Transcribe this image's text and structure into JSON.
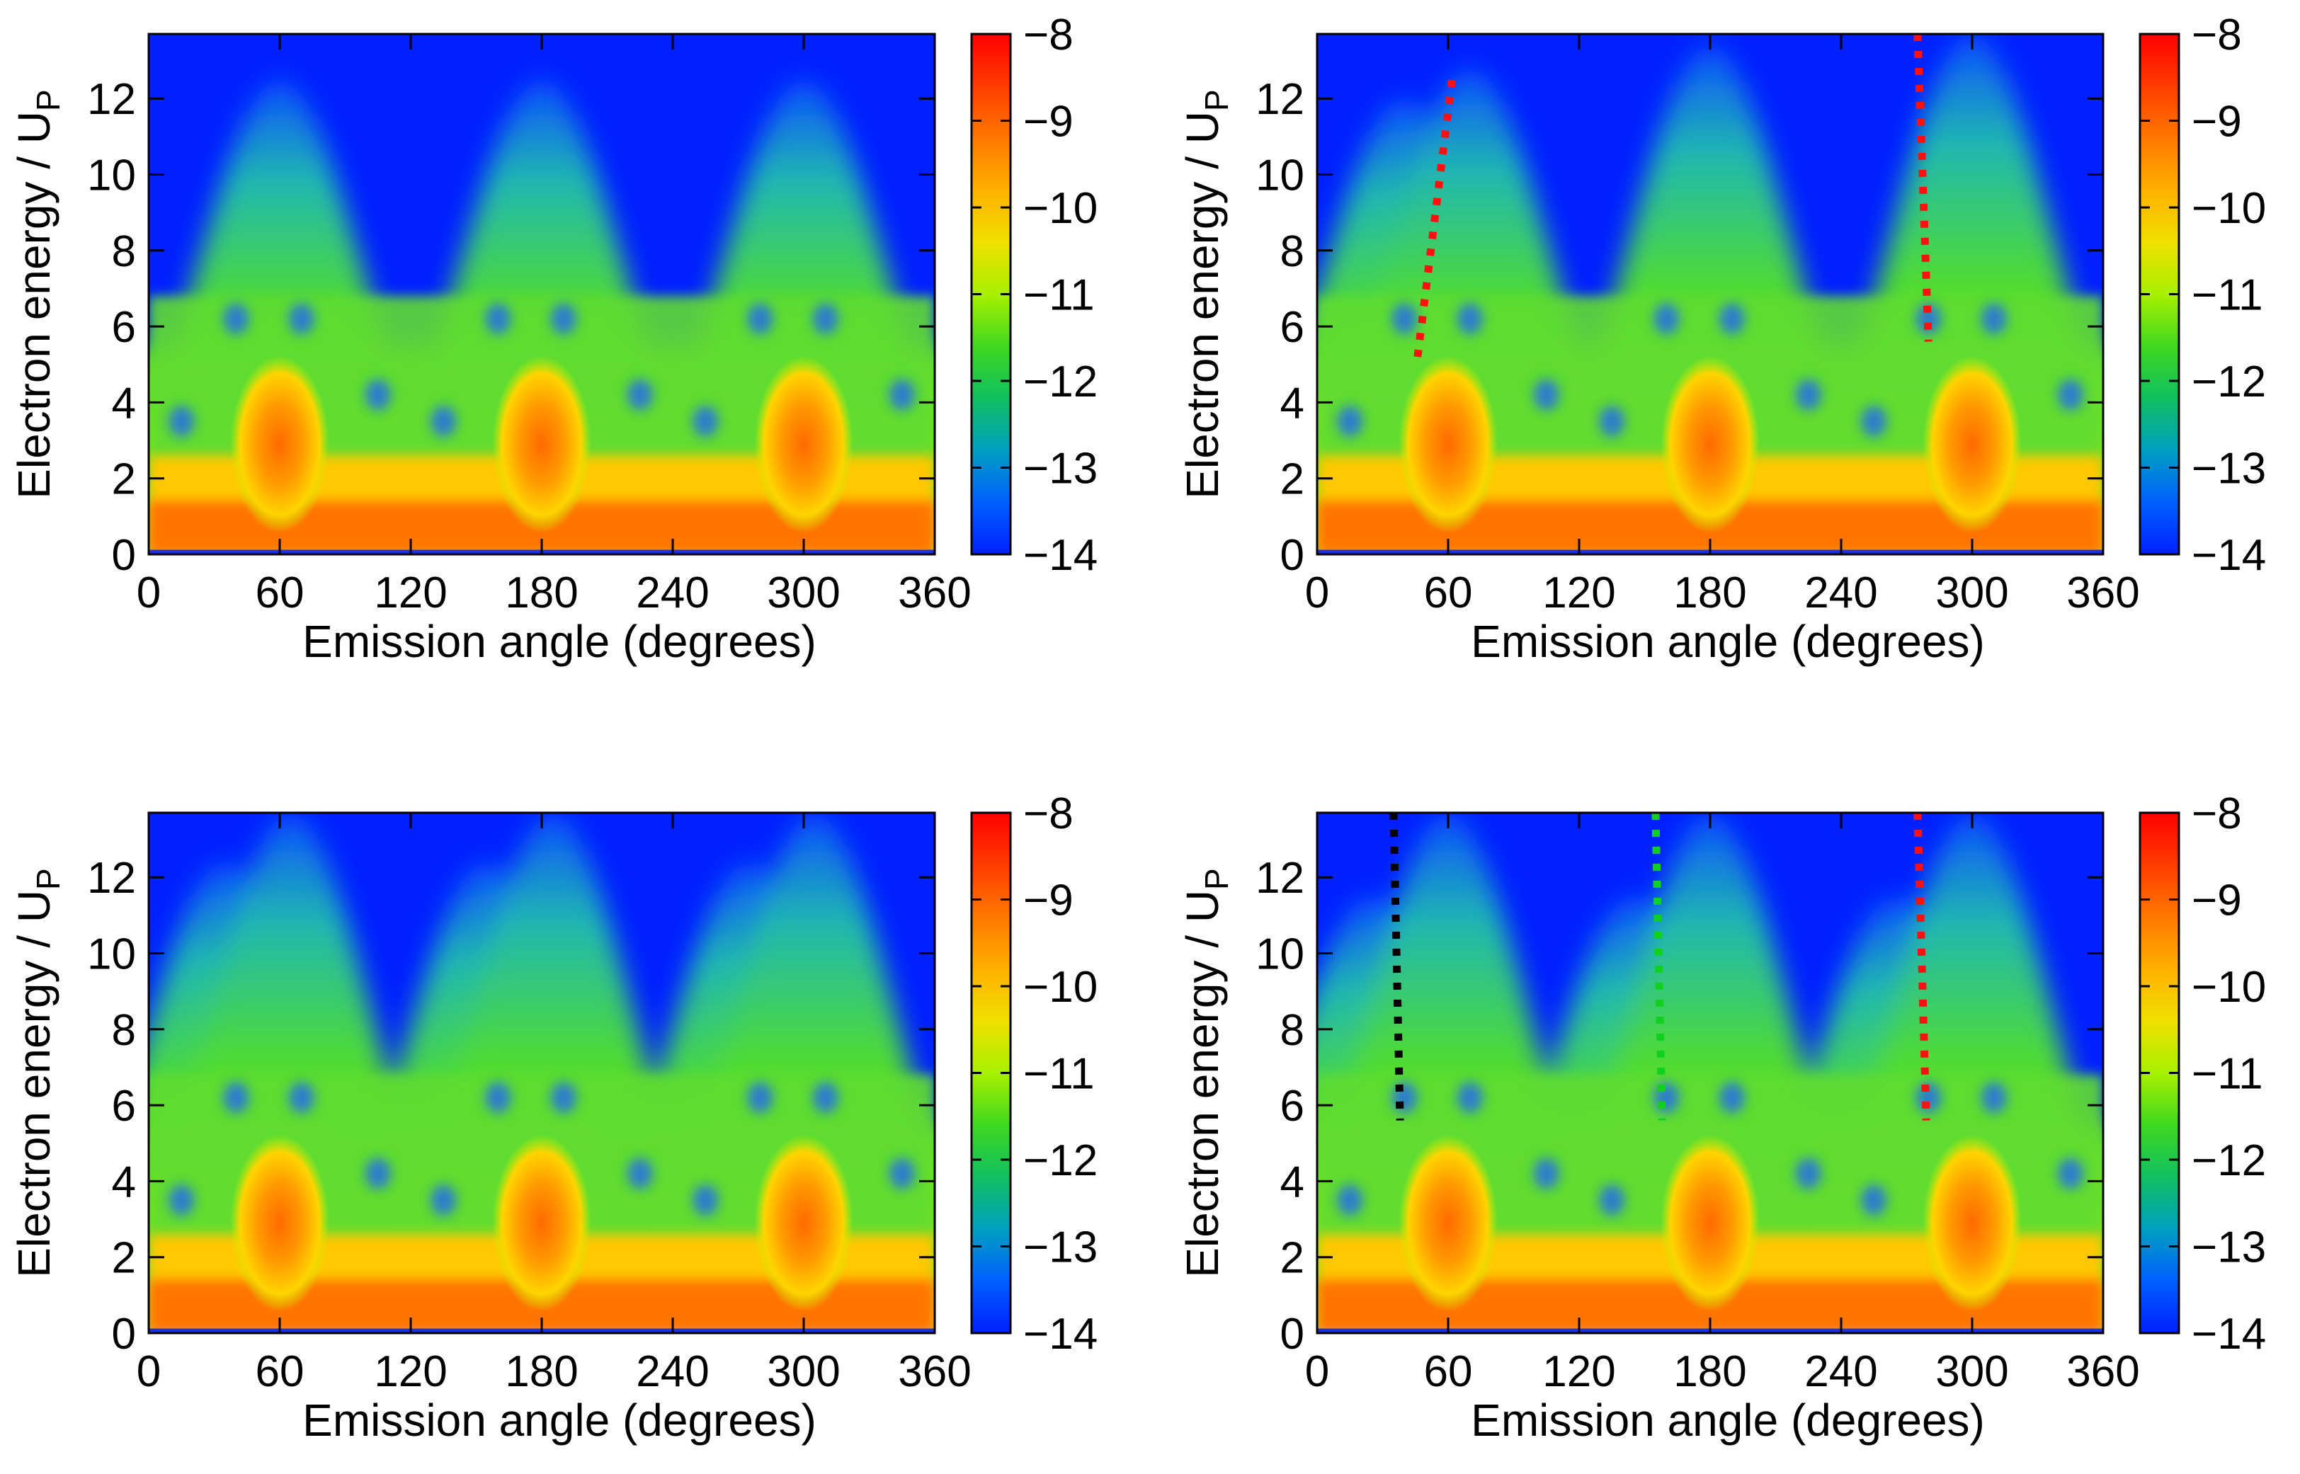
{
  "figure": {
    "description_axes": "Electron energy / Up versus emission angle maps",
    "colorbar": {
      "ticks": [
        "−8",
        "−9",
        "−10",
        "−11",
        "−12",
        "−13",
        "−14"
      ],
      "range": [
        -14,
        -8
      ],
      "colors": [
        "#0020ff",
        "#0060ff",
        "#00a0c0",
        "#10c060",
        "#40d820",
        "#a8f000",
        "#f0e000",
        "#ffb000",
        "#ff7800",
        "#ff3c00",
        "#ff0000"
      ]
    }
  },
  "chart_data": [
    {
      "type": "heatmap",
      "panel": "top-left",
      "xlabel": "Emission angle (degrees)",
      "ylabel_main": "Electron energy / U",
      "ylabel_sub": "P",
      "xlim": [
        0,
        360
      ],
      "ylim": [
        0,
        13.7
      ],
      "xticks": [
        "0",
        "60",
        "120",
        "180",
        "240",
        "300",
        "360"
      ],
      "yticks": [
        "0",
        "2",
        "4",
        "6",
        "8",
        "10",
        "12"
      ],
      "lobes": [
        {
          "center_deg": 60,
          "peak_energy": 12.5
        },
        {
          "center_deg": 180,
          "peak_energy": 12.5
        },
        {
          "center_deg": 300,
          "peak_energy": 12.5
        }
      ],
      "lines": []
    },
    {
      "type": "heatmap",
      "panel": "top-right",
      "xlabel": "Emission angle (degrees)",
      "ylabel_main": "Electron energy / U",
      "ylabel_sub": "P",
      "xlim": [
        0,
        360
      ],
      "ylim": [
        0,
        13.7
      ],
      "xticks": [
        "0",
        "60",
        "120",
        "180",
        "240",
        "300",
        "360"
      ],
      "yticks": [
        "0",
        "2",
        "4",
        "6",
        "8",
        "10",
        "12"
      ],
      "lobes": [
        {
          "center_deg": 40,
          "peak_energy": 12.0
        },
        {
          "center_deg": 70,
          "peak_energy": 12.8
        },
        {
          "center_deg": 180,
          "peak_energy": 13.4
        },
        {
          "center_deg": 300,
          "peak_energy": 13.7
        }
      ],
      "lines": [
        {
          "color": "#ff1010",
          "points": [
            [
              46,
              5.2
            ],
            [
              62,
              12.6
            ]
          ]
        },
        {
          "color": "#ff1010",
          "points": [
            [
              275,
              13.7
            ],
            [
              280,
              5.6
            ]
          ]
        }
      ]
    },
    {
      "type": "heatmap",
      "panel": "bottom-left",
      "xlabel": "Emission angle (degrees)",
      "ylabel_main": "Electron energy / U",
      "ylabel_sub": "P",
      "xlim": [
        0,
        360
      ],
      "ylim": [
        0,
        13.7
      ],
      "xticks": [
        "0",
        "60",
        "120",
        "180",
        "240",
        "300",
        "360"
      ],
      "yticks": [
        "0",
        "2",
        "4",
        "6",
        "8",
        "10",
        "12"
      ],
      "lobes": [
        {
          "center_deg": 35,
          "peak_energy": 12.4
        },
        {
          "center_deg": 65,
          "peak_energy": 13.7
        },
        {
          "center_deg": 155,
          "peak_energy": 12.4
        },
        {
          "center_deg": 185,
          "peak_energy": 13.7
        },
        {
          "center_deg": 275,
          "peak_energy": 12.4
        },
        {
          "center_deg": 305,
          "peak_energy": 13.7
        }
      ],
      "lines": []
    },
    {
      "type": "heatmap",
      "panel": "bottom-right",
      "xlabel": "Emission angle (degrees)",
      "ylabel_main": "Electron energy / U",
      "ylabel_sub": "P",
      "xlim": [
        0,
        360
      ],
      "ylim": [
        0,
        13.7
      ],
      "xticks": [
        "0",
        "60",
        "120",
        "180",
        "240",
        "300",
        "360"
      ],
      "yticks": [
        "0",
        "2",
        "4",
        "6",
        "8",
        "10",
        "12"
      ],
      "lobes": [
        {
          "center_deg": 25,
          "peak_energy": 11.5
        },
        {
          "center_deg": 60,
          "peak_energy": 13.7
        },
        {
          "center_deg": 145,
          "peak_energy": 11.5
        },
        {
          "center_deg": 180,
          "peak_energy": 13.7
        },
        {
          "center_deg": 265,
          "peak_energy": 11.5
        },
        {
          "center_deg": 300,
          "peak_energy": 13.7
        }
      ],
      "lines": [
        {
          "color": "#000000",
          "points": [
            [
              35,
              13.7
            ],
            [
              38,
              5.6
            ]
          ]
        },
        {
          "color": "#10d020",
          "points": [
            [
              155,
              13.7
            ],
            [
              158,
              5.6
            ]
          ]
        },
        {
          "color": "#ff1010",
          "points": [
            [
              275,
              13.7
            ],
            [
              279,
              5.6
            ]
          ]
        }
      ]
    }
  ]
}
